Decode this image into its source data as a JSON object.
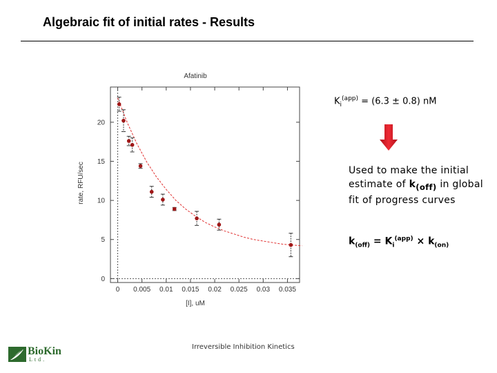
{
  "slide": {
    "title": "Algebraic fit of initial rates - Results",
    "footer": "Irreversible Inhibition Kinetics"
  },
  "logo": {
    "name": "BioKin",
    "subtitle": "Ltd."
  },
  "ki_result": {
    "prefix": "K",
    "sub": "i",
    "sup": "(app)",
    "value_text": " = (6.3 ± 0.8) nM"
  },
  "note": {
    "line1": "Used to make the initial estimate of",
    "k_label": "k",
    "k_sub": "(off)",
    "line2": " in global fit of progress curves"
  },
  "formula": {
    "lhs_k": "k",
    "lhs_sub": "(off)",
    "eq": " = K",
    "ki_sub": "i",
    "ki_sup": "(app)",
    "times": " × k",
    "kon_sub": "(on)"
  },
  "colors": {
    "arrow": "#e8202a",
    "data_point": "#a01818",
    "fit_curve": "#e03030",
    "logo": "#2d6a2d"
  },
  "chart_data": {
    "type": "scatter",
    "title": "Afatinib",
    "xlabel": "[I], uM",
    "ylabel": "rate, RFU/sec",
    "xlim": [
      -0.0015,
      0.0375
    ],
    "ylim": [
      -0.5,
      24.5
    ],
    "xticks": [
      0,
      0.005,
      0.01,
      0.015,
      0.02,
      0.025,
      0.03,
      0.035
    ],
    "xtick_labels": [
      "0",
      "0.005",
      "0.01",
      "0.015",
      "0.02",
      "0.025",
      "0.03",
      "0.035"
    ],
    "yticks": [
      0,
      5,
      10,
      15,
      20
    ],
    "ytick_labels": [
      "0",
      "5",
      "10",
      "15",
      "20"
    ],
    "grid": false,
    "series": [
      {
        "type": "points",
        "x": [
          0.0003,
          0.0012,
          0.0023,
          0.003,
          0.0047,
          0.007,
          0.0093,
          0.0117,
          0.0163,
          0.0209,
          0.0357
        ],
        "y": [
          22.3,
          20.2,
          17.6,
          17.1,
          14.4,
          11.1,
          10.1,
          8.9,
          7.7,
          6.9,
          4.3
        ],
        "err": [
          0.9,
          1.4,
          0.6,
          0.9,
          0.3,
          0.7,
          0.7,
          0.2,
          0.9,
          0.7,
          1.5
        ]
      },
      {
        "type": "fit",
        "x": [
          0.0,
          0.002,
          0.004,
          0.006,
          0.008,
          0.01,
          0.012,
          0.014,
          0.016,
          0.018,
          0.02,
          0.022,
          0.024,
          0.026,
          0.028,
          0.03,
          0.032,
          0.034,
          0.036,
          0.038
        ],
        "y": [
          23.1,
          19.9,
          17.2,
          14.9,
          13.0,
          11.4,
          10.0,
          8.9,
          8.0,
          7.2,
          6.6,
          6.1,
          5.7,
          5.3,
          5.0,
          4.8,
          4.6,
          4.4,
          4.3,
          4.2
        ]
      }
    ]
  }
}
